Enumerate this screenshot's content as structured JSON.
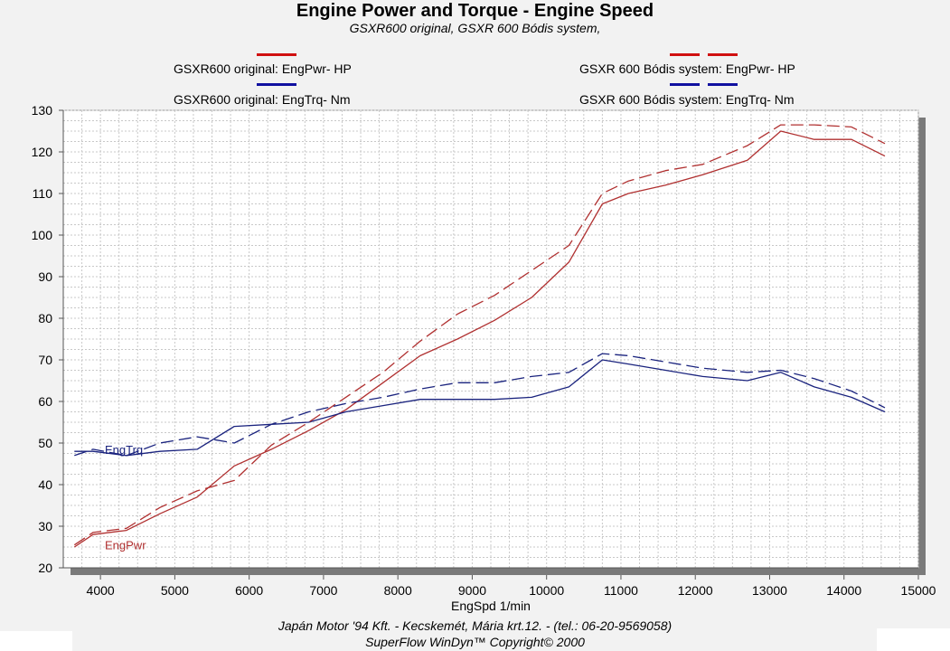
{
  "chart_data": {
    "type": "line",
    "title": "Engine Power and Torque - Engine Speed",
    "subtitle": "GSXR600 original, GSXR 600 Bódis system,",
    "xlabel": "EngSpd 1/min",
    "ylabel": "",
    "xlim": [
      3500,
      15000
    ],
    "ylim": [
      20,
      130
    ],
    "xticks": [
      4000,
      5000,
      6000,
      7000,
      8000,
      9000,
      10000,
      11000,
      12000,
      13000,
      14000,
      15000
    ],
    "yticks": [
      20,
      30,
      40,
      50,
      60,
      70,
      80,
      90,
      100,
      110,
      120,
      130
    ],
    "grid": true,
    "legend_position": "top",
    "inline_labels": {
      "power": "EngPwr",
      "torque": "EngTrq"
    },
    "series": [
      {
        "name": "GSXR600 original: EngPwr-  HP",
        "color": "#b03030",
        "dash": "solid",
        "x": [
          3650,
          3900,
          4350,
          4800,
          5300,
          5800,
          6300,
          6800,
          7300,
          7800,
          8300,
          8800,
          9300,
          9800,
          10300,
          10750,
          11100,
          11600,
          12100,
          12700,
          13150,
          13600,
          14100,
          14550
        ],
        "y": [
          25,
          28,
          29,
          33,
          37,
          44.5,
          48.5,
          53,
          58,
          64.5,
          71,
          75,
          79.5,
          85,
          93.5,
          107.5,
          110,
          112,
          114.5,
          118,
          125,
          123,
          123,
          119
        ]
      },
      {
        "name": "GSXR600 original: EngTrq-  Nm",
        "color": "#1a237e",
        "dash": "solid",
        "x": [
          3650,
          3900,
          4350,
          4800,
          5300,
          5800,
          6300,
          6800,
          7300,
          7800,
          8300,
          8800,
          9300,
          9800,
          10300,
          10750,
          11100,
          11600,
          12100,
          12700,
          13150,
          13600,
          14100,
          14550
        ],
        "y": [
          48,
          48,
          47,
          48,
          48.5,
          54,
          54.5,
          55,
          57.5,
          59,
          60.5,
          60.5,
          60.5,
          61,
          63.5,
          70,
          69,
          67.5,
          66,
          65,
          67,
          63.5,
          61,
          57.5
        ]
      },
      {
        "name": "GSXR 600 Bódis system: EngPwr-  HP",
        "color": "#b03030",
        "dash": "dashed",
        "x": [
          3650,
          3900,
          4350,
          4800,
          5300,
          5800,
          6300,
          6800,
          7300,
          7800,
          8300,
          8800,
          9300,
          9800,
          10300,
          10750,
          11100,
          11600,
          12100,
          12700,
          13150,
          13600,
          14100,
          14550
        ],
        "y": [
          25.5,
          28.5,
          29.5,
          34.5,
          38.5,
          41,
          49.5,
          55,
          61,
          67,
          74.5,
          81,
          85.5,
          91.5,
          97.5,
          110,
          113,
          115.5,
          117,
          121.5,
          126.5,
          126.5,
          126,
          122
        ]
      },
      {
        "name": "GSXR 600 Bódis system: EngTrq-  Nm",
        "color": "#1a237e",
        "dash": "dashed",
        "x": [
          3650,
          3900,
          4350,
          4800,
          5300,
          5800,
          6300,
          6800,
          7300,
          7800,
          8300,
          8800,
          9300,
          9800,
          10300,
          10750,
          11100,
          11600,
          12100,
          12700,
          13150,
          13600,
          14100,
          14550
        ],
        "y": [
          47,
          48.5,
          47,
          50,
          51.5,
          50,
          54.5,
          57.5,
          59.5,
          61,
          63,
          64.5,
          64.5,
          66,
          67,
          71.5,
          71,
          69.5,
          68,
          67,
          67.5,
          65.5,
          62.5,
          58.5
        ]
      }
    ]
  },
  "footer": {
    "line1": "Japán Motor '94 Kft.  -  Kecskemét, Mária krt.12.  -  (tel.: 06-20-9569058)",
    "line2": "SuperFlow WinDyn™  Copyright© 2000"
  }
}
